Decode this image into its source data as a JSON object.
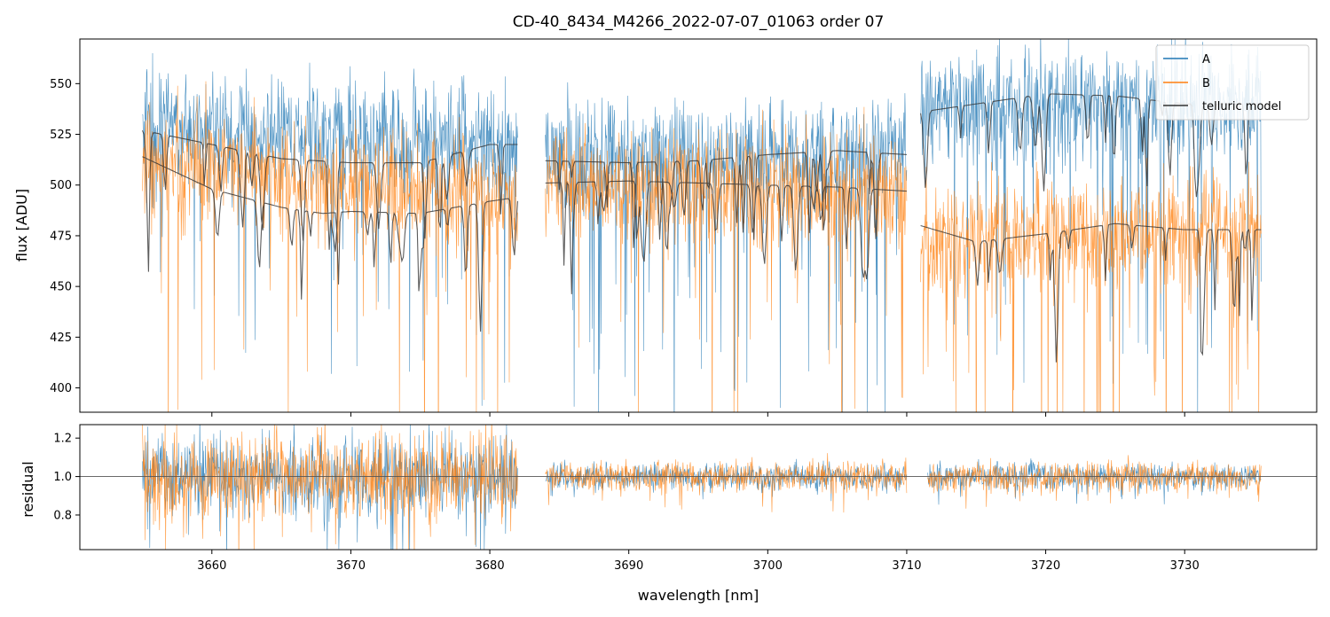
{
  "chart_data": [
    {
      "type": "line",
      "panel": "flux",
      "title": "CD-40_8434_M4266_2022-07-07_01063  order 07",
      "xlabel": "",
      "ylabel": "flux [ADU]",
      "xlim": [
        3650.5,
        3739.5
      ],
      "ylim": [
        388,
        572
      ],
      "x_ticks": [
        3660,
        3670,
        3680,
        3690,
        3700,
        3710,
        3720,
        3730
      ],
      "y_ticks": [
        400,
        425,
        450,
        475,
        500,
        525,
        550
      ],
      "y_tick_labels": [
        "400",
        "425",
        "450",
        "475",
        "500",
        "525",
        "550"
      ],
      "legend": {
        "position": "top-right",
        "entries": [
          "A",
          "B",
          "telluric model"
        ]
      },
      "series": [
        {
          "name": "A",
          "color": "#1f77b4",
          "segments": [
            {
              "x_range": [
                3655.0,
                3682.0
              ],
              "continuum": [
                528,
                520
              ]
            },
            {
              "x_range": [
                3684.0,
                3710.0
              ],
              "continuum": [
                513,
                514
              ]
            },
            {
              "x_range": [
                3711.0,
                3735.5
              ],
              "continuum": [
                540,
                540
              ]
            }
          ]
        },
        {
          "name": "B",
          "color": "#ff7f0e",
          "segments": [
            {
              "x_range": [
                3655.0,
                3682.0
              ],
              "continuum": [
                512,
                492
              ]
            },
            {
              "x_range": [
                3684.0,
                3710.0
              ],
              "continuum": [
                500,
                498
              ]
            },
            {
              "x_range": [
                3711.0,
                3735.5
              ],
              "continuum": [
                472,
                478
              ]
            }
          ]
        },
        {
          "name": "telluric model",
          "color": "#333333",
          "segments": [
            {
              "for": "A",
              "x": [
                3655.0,
                3660.0,
                3665.0,
                3670.0,
                3675.0,
                3680.0,
                3682.0
              ],
              "y": [
                527,
                520,
                513,
                511,
                511,
                520,
                520
              ]
            },
            {
              "for": "B",
              "x": [
                3655.0,
                3660.0,
                3665.0,
                3668.0,
                3670.0,
                3675.0,
                3680.0,
                3682.0
              ],
              "y": [
                514,
                498,
                489,
                486,
                487,
                486,
                492,
                494
              ]
            },
            {
              "for": "A",
              "x": [
                3684.0,
                3690.0,
                3695.0,
                3700.0,
                3705.0,
                3710.0
              ],
              "y": [
                512,
                511,
                512,
                515,
                517,
                515
              ]
            },
            {
              "for": "B",
              "x": [
                3684.0,
                3690.0,
                3695.0,
                3700.0,
                3705.0,
                3710.0
              ],
              "y": [
                501,
                502,
                501,
                500,
                499,
                497
              ]
            },
            {
              "for": "A",
              "x": [
                3711.0,
                3715.0,
                3720.0,
                3725.0,
                3730.0,
                3735.5
              ],
              "y": [
                536,
                540,
                545,
                544,
                540,
                540
              ]
            },
            {
              "for": "B",
              "x": [
                3711.0,
                3715.0,
                3720.0,
                3725.0,
                3730.0,
                3735.5
              ],
              "y": [
                480,
                472,
                476,
                481,
                478,
                478
              ]
            }
          ]
        }
      ]
    },
    {
      "type": "line",
      "panel": "residual",
      "title": "",
      "xlabel": "wavelength [nm]",
      "ylabel": "residual",
      "xlim": [
        3650.5,
        3739.5
      ],
      "ylim": [
        0.62,
        1.27
      ],
      "x_ticks": [
        3660,
        3670,
        3680,
        3690,
        3700,
        3710,
        3720,
        3730
      ],
      "x_tick_labels": [
        "3660",
        "3670",
        "3680",
        "3690",
        "3700",
        "3710",
        "3720",
        "3730"
      ],
      "y_ticks": [
        0.8,
        1.0,
        1.2
      ],
      "y_tick_labels": [
        "0.8",
        "1.0",
        "1.2"
      ],
      "reference_line": 1.0,
      "series": [
        {
          "name": "A",
          "color": "#1f77b4",
          "segments": [
            {
              "x_range": [
                3655.0,
                3682.0
              ],
              "noise": 0.11
            },
            {
              "x_range": [
                3684.0,
                3710.0
              ],
              "noise": 0.035
            },
            {
              "x_range": [
                3711.5,
                3735.5
              ],
              "noise": 0.035
            }
          ]
        },
        {
          "name": "B",
          "color": "#ff7f0e",
          "segments": [
            {
              "x_range": [
                3655.0,
                3682.0
              ],
              "noise": 0.12
            },
            {
              "x_range": [
                3684.0,
                3710.0
              ],
              "noise": 0.04
            },
            {
              "x_range": [
                3711.5,
                3735.5
              ],
              "noise": 0.04
            }
          ]
        }
      ]
    }
  ]
}
